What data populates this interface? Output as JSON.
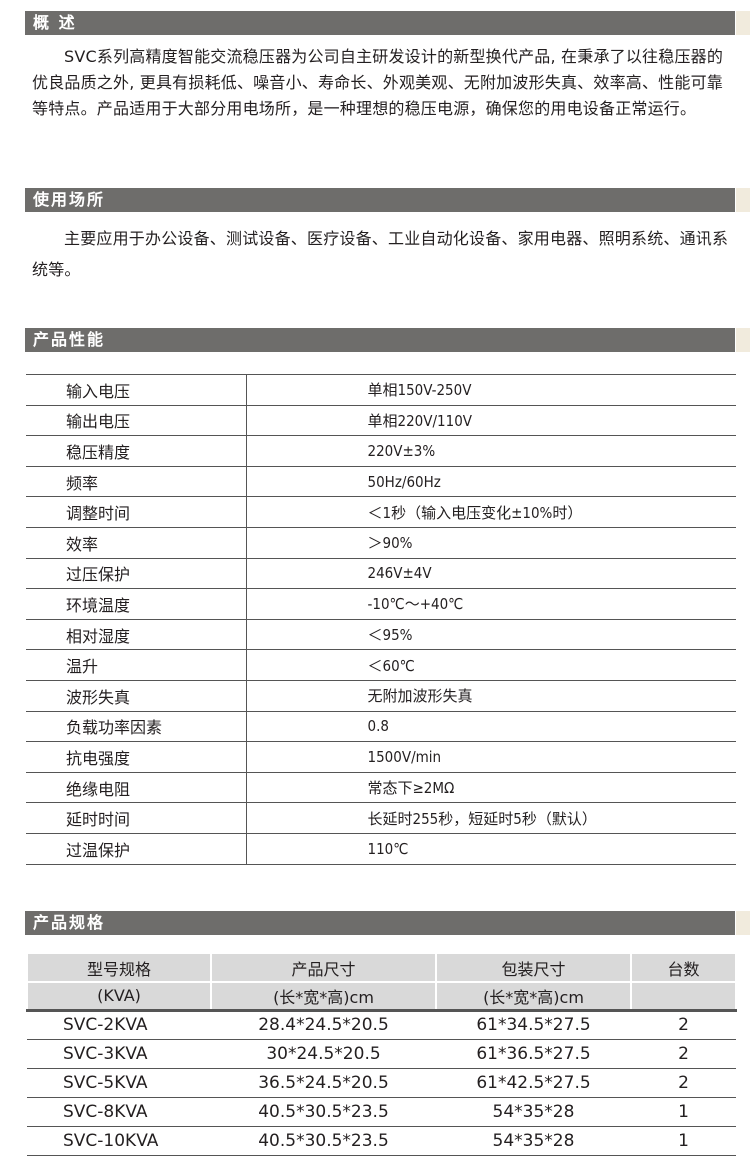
{
  "sections": {
    "overview": {
      "title": "概  述",
      "text": "SVC系列高精度智能交流稳压器为公司自主研发设计的新型换代产品, 在秉承了以往稳压器的优良品质之外, 更具有损耗低、噪音小、寿命长、外观美观、无附加波形失真、效率高、性能可靠等特点。产品适用于大部分用电场所，是一种理想的稳压电源，确保您的用电设备正常运行。"
    },
    "usage": {
      "title": "使用场所",
      "text": "主要应用于办公设备、测试设备、医疗设备、工业自动化设备、家用电器、照明系统、通讯系统等。"
    },
    "performance": {
      "title": "产品性能",
      "rows": [
        {
          "k": "输入电压",
          "v": "单相150V-250V"
        },
        {
          "k": "输出电压",
          "v": "单相220V/110V"
        },
        {
          "k": "稳压精度",
          "v": "220V±3%"
        },
        {
          "k": "频率",
          "v": "50Hz/60Hz"
        },
        {
          "k": "调整时间",
          "v": "＜1秒（输入电压变化±10%时）"
        },
        {
          "k": "效率",
          "v": "＞90%"
        },
        {
          "k": "过压保护",
          "v": "246V±4V"
        },
        {
          "k": "环境温度",
          "v": "-10℃～+40℃"
        },
        {
          "k": "相对湿度",
          "v": "＜95%"
        },
        {
          "k": "温升",
          "v": "＜60℃"
        },
        {
          "k": "波形失真",
          "v": "无附加波形失真"
        },
        {
          "k": "负载功率因素",
          "v": "0.8"
        },
        {
          "k": "抗电强度",
          "v": "1500V/min"
        },
        {
          "k": "绝缘电阻",
          "v": "常态下≥2MΩ"
        },
        {
          "k": "延时时间",
          "v": "长延时255秒，短延时5秒（默认）"
        },
        {
          "k": "过温保护",
          "v": "110℃"
        }
      ]
    },
    "specs": {
      "title": "产品规格",
      "headers": [
        [
          "型号规格",
          "(KVA)"
        ],
        [
          "产品尺寸",
          "(长*宽*高)cm"
        ],
        [
          "包装尺寸",
          "(长*宽*高)cm"
        ],
        [
          "台数",
          ""
        ]
      ],
      "rows": [
        [
          "SVC-2KVA",
          "28.4*24.5*20.5",
          "61*34.5*27.5",
          "2"
        ],
        [
          "SVC-3KVA",
          "30*24.5*20.5",
          "61*36.5*27.5",
          "2"
        ],
        [
          "SVC-5KVA",
          "36.5*24.5*20.5",
          "61*42.5*27.5",
          "2"
        ],
        [
          "SVC-8KVA",
          "40.5*30.5*23.5",
          "54*35*28",
          "1"
        ],
        [
          "SVC-10KVA",
          "40.5*30.5*23.5",
          "54*35*28",
          "1"
        ]
      ]
    }
  },
  "colors": {
    "header_bar": "#6e6d6b",
    "table_header": "#d9d9d9"
  }
}
